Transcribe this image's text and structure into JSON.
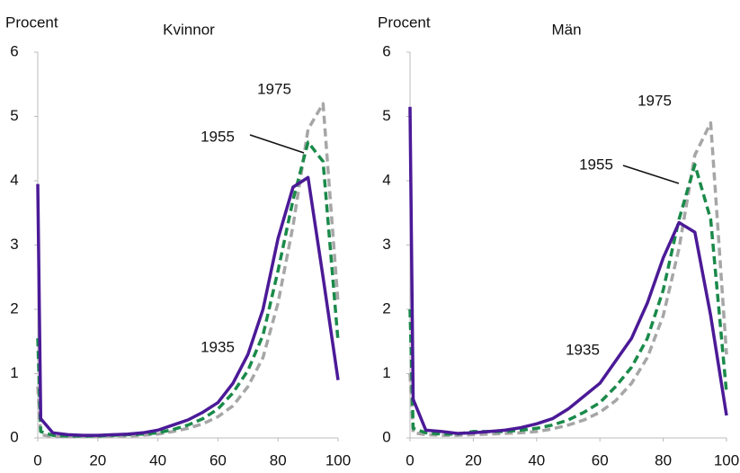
{
  "chart_data": [
    {
      "type": "line",
      "title": "Kvinnor",
      "y_label": "Procent",
      "x": [
        0,
        1,
        5,
        10,
        15,
        20,
        25,
        30,
        35,
        40,
        45,
        50,
        55,
        60,
        65,
        70,
        75,
        80,
        85,
        90,
        95,
        100
      ],
      "series": [
        {
          "name": "1935",
          "color": "#4b1a97",
          "dashed": false,
          "values": [
            3.95,
            0.3,
            0.08,
            0.05,
            0.04,
            0.04,
            0.05,
            0.06,
            0.08,
            0.12,
            0.2,
            0.28,
            0.4,
            0.55,
            0.85,
            1.3,
            2.0,
            3.1,
            3.9,
            4.05,
            2.5,
            0.9
          ]
        },
        {
          "name": "1955",
          "color": "#1a8a4a",
          "dashed": true,
          "values": [
            1.55,
            0.1,
            0.04,
            0.03,
            0.03,
            0.03,
            0.04,
            0.05,
            0.06,
            0.08,
            0.13,
            0.2,
            0.3,
            0.45,
            0.7,
            1.05,
            1.6,
            2.6,
            3.7,
            4.6,
            4.3,
            1.5
          ]
        },
        {
          "name": "1975",
          "color": "#a6a6a6",
          "dashed": true,
          "values": [
            0.8,
            0.05,
            0.02,
            0.02,
            0.02,
            0.02,
            0.03,
            0.03,
            0.04,
            0.06,
            0.1,
            0.15,
            0.22,
            0.33,
            0.5,
            0.8,
            1.25,
            2.1,
            3.3,
            4.8,
            5.2,
            2.1
          ]
        }
      ],
      "xlim": [
        0,
        100
      ],
      "xticks": [
        0,
        20,
        40,
        60,
        80,
        100
      ],
      "ylim": [
        0,
        6
      ],
      "yticks": [
        0,
        1,
        2,
        3,
        4,
        5,
        6
      ],
      "grid": false
    },
    {
      "type": "line",
      "title": "Män",
      "y_label": "Procent",
      "x": [
        0,
        1,
        5,
        10,
        15,
        20,
        25,
        30,
        35,
        40,
        45,
        50,
        55,
        60,
        65,
        70,
        75,
        80,
        85,
        90,
        95,
        100
      ],
      "series": [
        {
          "name": "1935",
          "color": "#4b1a97",
          "dashed": false,
          "values": [
            5.15,
            0.6,
            0.12,
            0.1,
            0.07,
            0.08,
            0.1,
            0.12,
            0.16,
            0.22,
            0.3,
            0.45,
            0.65,
            0.85,
            1.2,
            1.55,
            2.1,
            2.8,
            3.35,
            3.2,
            1.9,
            0.35
          ]
        },
        {
          "name": "1955",
          "color": "#1a8a4a",
          "dashed": true,
          "values": [
            2.0,
            0.15,
            0.08,
            0.06,
            0.06,
            0.1,
            0.1,
            0.1,
            0.12,
            0.15,
            0.2,
            0.28,
            0.4,
            0.55,
            0.8,
            1.1,
            1.55,
            2.3,
            3.4,
            4.25,
            3.4,
            0.7
          ]
        },
        {
          "name": "1975",
          "color": "#a6a6a6",
          "dashed": true,
          "values": [
            1.0,
            0.08,
            0.05,
            0.04,
            0.04,
            0.05,
            0.06,
            0.07,
            0.08,
            0.1,
            0.14,
            0.2,
            0.28,
            0.4,
            0.58,
            0.85,
            1.25,
            1.9,
            2.95,
            4.4,
            4.9,
            1.3
          ]
        }
      ],
      "xlim": [
        0,
        100
      ],
      "xticks": [
        0,
        20,
        40,
        60,
        80,
        100
      ],
      "ylim": [
        0,
        6
      ],
      "yticks": [
        0,
        1,
        2,
        3,
        4,
        5,
        6
      ],
      "grid": false
    }
  ]
}
